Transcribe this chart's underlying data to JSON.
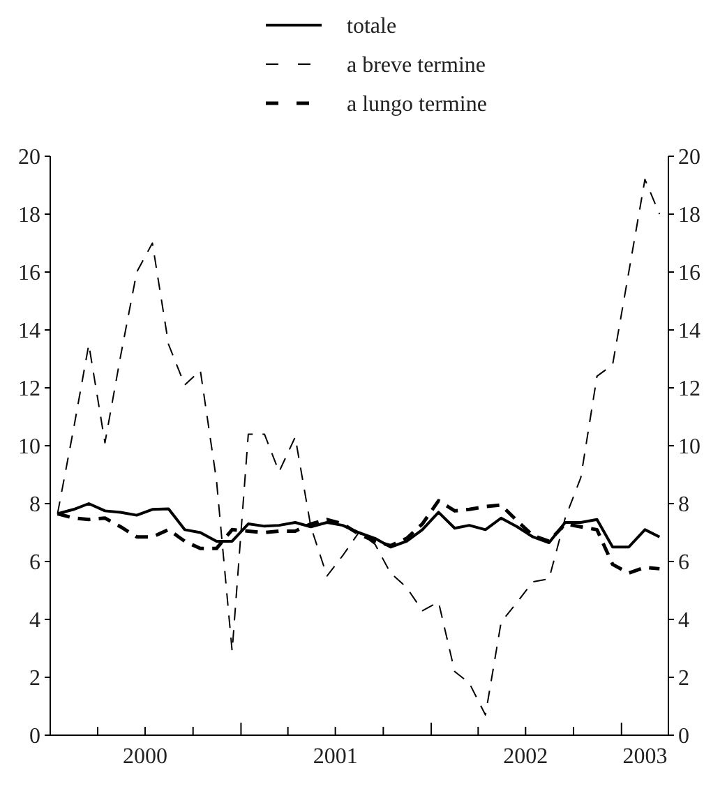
{
  "chart_data": {
    "type": "line",
    "x": [
      "2000-01-15",
      "2000-02-15",
      "2000-03-15",
      "2000-04-15",
      "2000-05-15",
      "2000-06-15",
      "2000-07-15",
      "2000-08-15",
      "2000-09-15",
      "2000-10-15",
      "2000-11-15",
      "2000-12-15",
      "2001-01-15",
      "2001-02-15",
      "2001-03-15",
      "2001-04-15",
      "2001-05-15",
      "2001-06-15",
      "2001-07-15",
      "2001-08-15",
      "2001-09-15",
      "2001-10-15",
      "2001-11-15",
      "2001-12-15",
      "2002-01-15",
      "2002-02-15",
      "2002-03-15",
      "2002-04-15",
      "2002-05-15",
      "2002-06-15",
      "2002-07-15",
      "2002-08-15",
      "2002-09-15",
      "2002-10-15",
      "2002-11-15",
      "2002-12-15",
      "2003-01-15",
      "2003-02-15",
      "2003-03-15"
    ],
    "series": [
      {
        "name": "totale",
        "color": "#000000",
        "line_style": "solid",
        "values": [
          7.65,
          7.8,
          8.0,
          7.75,
          7.7,
          7.6,
          7.8,
          7.82,
          7.1,
          7.0,
          6.7,
          6.7,
          7.3,
          7.22,
          7.25,
          7.35,
          7.2,
          7.35,
          7.25,
          7.0,
          6.8,
          6.5,
          6.7,
          7.1,
          7.7,
          7.15,
          7.25,
          7.1,
          7.5,
          7.2,
          6.85,
          6.65,
          7.35,
          7.35,
          7.45,
          6.5,
          6.5,
          7.1,
          6.85
        ]
      },
      {
        "name": "a breve termine",
        "color": "#000000",
        "line_style": "dashed",
        "values": [
          7.65,
          10.6,
          13.5,
          10.1,
          13.1,
          16.0,
          17.0,
          13.5,
          12.1,
          12.6,
          8.8,
          2.9,
          10.4,
          10.4,
          9.1,
          10.3,
          7.2,
          5.5,
          6.2,
          7.0,
          6.6,
          5.6,
          5.1,
          4.3,
          4.6,
          2.2,
          1.8,
          0.7,
          3.9,
          4.6,
          5.3,
          5.4,
          7.5,
          8.9,
          12.4,
          12.8,
          16.0,
          19.2,
          18.0
        ]
      },
      {
        "name": "a lungo termine",
        "color": "#000000",
        "line_style": "dashed",
        "values": [
          7.65,
          7.5,
          7.45,
          7.5,
          7.2,
          6.85,
          6.85,
          7.1,
          6.7,
          6.45,
          6.45,
          7.1,
          7.05,
          7.0,
          7.05,
          7.05,
          7.3,
          7.45,
          7.3,
          6.95,
          6.7,
          6.55,
          6.8,
          7.3,
          8.1,
          7.75,
          7.8,
          7.9,
          7.95,
          7.4,
          6.9,
          6.7,
          7.3,
          7.2,
          7.1,
          5.9,
          5.6,
          5.8,
          5.75
        ]
      }
    ],
    "xlim": [
      "2000-01-01",
      "2003-04-01"
    ],
    "xticks": [
      {
        "value": "2000-04-01",
        "label": null
      },
      {
        "value": "2000-07-01",
        "label": "2000"
      },
      {
        "value": "2000-10-01",
        "label": null
      },
      {
        "value": "2001-01-01",
        "label": null
      },
      {
        "value": "2001-04-01",
        "label": null
      },
      {
        "value": "2001-07-01",
        "label": "2001"
      },
      {
        "value": "2001-10-01",
        "label": null
      },
      {
        "value": "2002-01-01",
        "label": null
      },
      {
        "value": "2002-04-01",
        "label": null
      },
      {
        "value": "2002-07-01",
        "label": "2002"
      },
      {
        "value": "2002-10-01",
        "label": null
      },
      {
        "value": "2003-01-01",
        "label": null
      },
      {
        "value": "2003-02-15",
        "label": "2003"
      }
    ],
    "ylim": [
      0,
      20
    ],
    "yticks": [
      0,
      2,
      4,
      6,
      8,
      10,
      12,
      14,
      16,
      18,
      20
    ],
    "y2lim": [
      0,
      20
    ],
    "y2ticks": [
      0,
      2,
      4,
      6,
      8,
      10,
      12,
      14,
      16,
      18,
      20
    ],
    "legend": "top",
    "grid": false,
    "marker": "none"
  }
}
